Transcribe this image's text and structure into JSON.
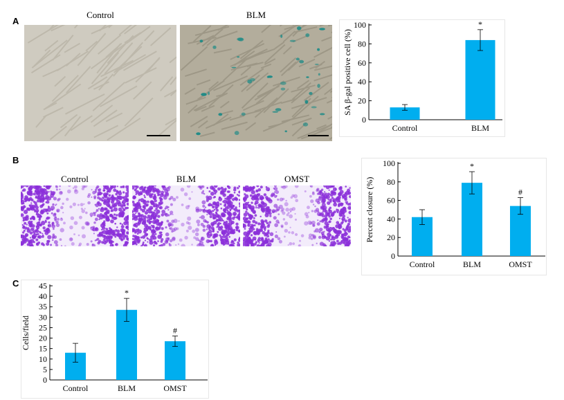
{
  "panels": {
    "A": {
      "letter": "A",
      "photos": [
        {
          "label": "Control"
        },
        {
          "label": "BLM"
        }
      ]
    },
    "B": {
      "letter": "B",
      "photos": [
        {
          "label": "Control"
        },
        {
          "label": "BLM"
        },
        {
          "label": "OMST"
        }
      ]
    },
    "C": {
      "letter": "C"
    }
  },
  "colors": {
    "bar": "#00AEEF",
    "photo_control_bg": "#cfcbc0",
    "photo_blm_bg": "#b3ad9c",
    "sa_gal_stain": "#1a8a86",
    "crystal_violet": "#8b2fd9",
    "crystal_violet_light": "#f3ecfb"
  },
  "chart_data": [
    {
      "id": "chart-A",
      "type": "bar",
      "categories": [
        "Control",
        "BLM"
      ],
      "values": [
        13,
        84
      ],
      "errors": [
        3,
        11
      ],
      "annotations": [
        "",
        "*"
      ],
      "ylabel": "SA β-gal positive cell (%)",
      "ylim": [
        0,
        100
      ],
      "yticks": [
        0,
        20,
        40,
        60,
        80,
        100
      ],
      "grid": false
    },
    {
      "id": "chart-B",
      "type": "bar",
      "categories": [
        "Control",
        "BLM",
        "OMST"
      ],
      "values": [
        42,
        79,
        54
      ],
      "errors": [
        8,
        12,
        9
      ],
      "annotations": [
        "",
        "*",
        "#"
      ],
      "ylabel": "Percent closure (%)",
      "ylim": [
        0,
        100
      ],
      "yticks": [
        0,
        20,
        40,
        60,
        80,
        100
      ],
      "grid": false
    },
    {
      "id": "chart-C",
      "type": "bar",
      "categories": [
        "Control",
        "BLM",
        "OMST"
      ],
      "values": [
        13,
        33.5,
        18.5
      ],
      "errors": [
        4.5,
        5.5,
        2.5
      ],
      "annotations": [
        "",
        "*",
        "#"
      ],
      "ylabel": "Cells/field",
      "ylim": [
        0,
        45
      ],
      "yticks": [
        0,
        5,
        10,
        15,
        20,
        25,
        30,
        35,
        40,
        45
      ],
      "grid": false
    }
  ]
}
